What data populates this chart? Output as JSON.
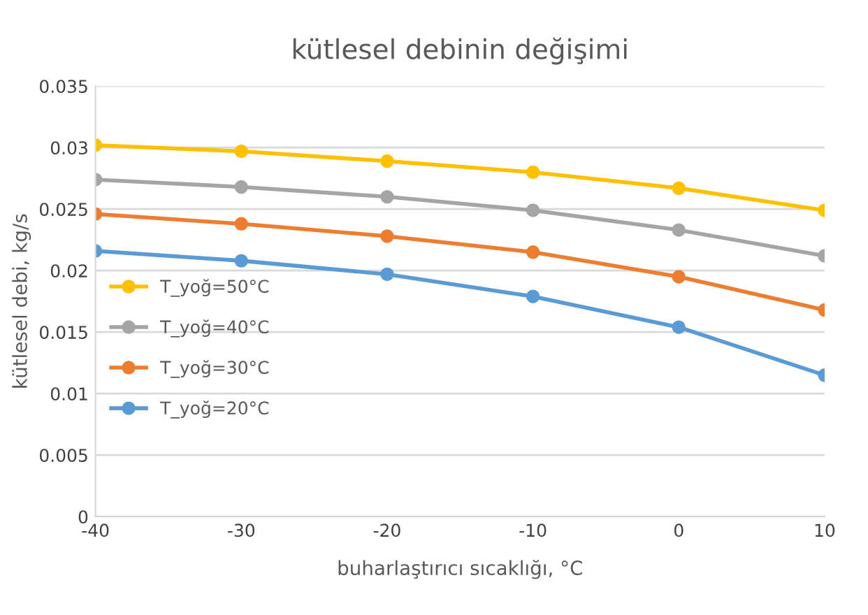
{
  "chart_data": {
    "type": "line",
    "title": "kütlesel debinin değişimi",
    "xlabel": "buharlaştırıcı sıcaklığı, °C",
    "ylabel": "kütlesel debi, kg/s",
    "x": [
      -40,
      -30,
      -20,
      -10,
      0,
      10
    ],
    "series": [
      {
        "name": "T_yoğ=50°C",
        "color": "#ffc000",
        "values": [
          0.0302,
          0.0297,
          0.0289,
          0.028,
          0.0267,
          0.0249
        ]
      },
      {
        "name": "T_yoğ=40°C",
        "color": "#a5a5a5",
        "values": [
          0.0274,
          0.0268,
          0.026,
          0.0249,
          0.0233,
          0.0212
        ]
      },
      {
        "name": "T_yoğ=30°C",
        "color": "#ed7d31",
        "values": [
          0.0246,
          0.0238,
          0.0228,
          0.0215,
          0.0195,
          0.0168
        ]
      },
      {
        "name": "T_yoğ=20°C",
        "color": "#5b9bd5",
        "values": [
          0.0216,
          0.0208,
          0.0197,
          0.0179,
          0.0154,
          0.0115
        ]
      }
    ],
    "xlim": [
      -40,
      10
    ],
    "xticks": [
      -40,
      -30,
      -20,
      -10,
      0,
      10
    ],
    "ylim": [
      0,
      0.035
    ],
    "yticks": [
      {
        "value": 0,
        "label": "0"
      },
      {
        "value": 0.005,
        "label": "0.005"
      },
      {
        "value": 0.01,
        "label": "0.01"
      },
      {
        "value": 0.015,
        "label": "0.015"
      },
      {
        "value": 0.02,
        "label": "0.02"
      },
      {
        "value": 0.025,
        "label": "0.025"
      },
      {
        "value": 0.03,
        "label": "0.03"
      },
      {
        "value": 0.035,
        "label": "0.035"
      }
    ],
    "grid": "y",
    "legend": "center left",
    "marker": "circle",
    "line_style": "solid"
  }
}
